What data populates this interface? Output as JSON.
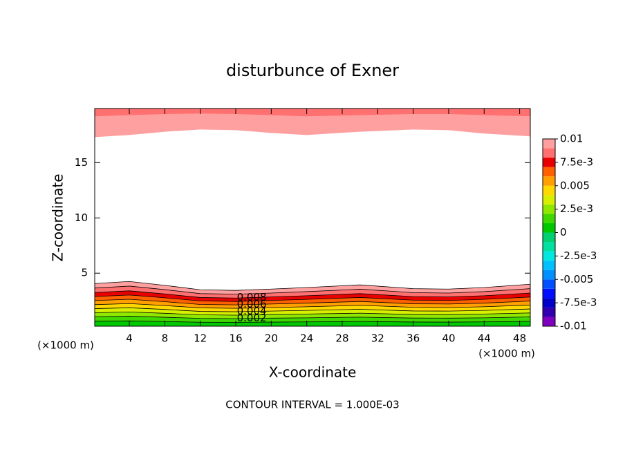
{
  "chart_data": {
    "type": "contour",
    "title": "disturbunce of Exner",
    "xlabel": "X-coordinate",
    "ylabel": "Z-coordinate",
    "xunit_label": "(×1000 m)",
    "yunit_label": "(×1000 m)",
    "annotation": "CONTOUR INTERVAL = 1.000E-03",
    "xlim": [
      0.1,
      49.2
    ],
    "ylim": [
      0.2,
      19.9
    ],
    "xticks": [
      4,
      8,
      12,
      16,
      20,
      24,
      28,
      32,
      36,
      40,
      44,
      48
    ],
    "yticks": [
      5,
      10,
      15
    ],
    "x": [
      0.1,
      4,
      8,
      12,
      16,
      20,
      24,
      30,
      36,
      40,
      44,
      49.2
    ],
    "contour_groups": [
      {
        "fill_from": "bottom",
        "lines": true,
        "contours": [
          {
            "level": 0.01,
            "z": [
              4.06,
              4.25,
              3.9,
              3.5,
              3.44,
              3.56,
              3.7,
              3.94,
              3.6,
              3.56,
              3.7,
              4.0
            ]
          },
          {
            "level": 0.009,
            "z": [
              3.65,
              3.83,
              3.51,
              3.15,
              3.1,
              3.2,
              3.33,
              3.55,
              3.24,
              3.2,
              3.33,
              3.6
            ]
          },
          {
            "level": 0.008,
            "z": [
              3.25,
              3.4,
              3.12,
              2.8,
              2.75,
              2.85,
              2.96,
              3.15,
              2.88,
              2.85,
              2.96,
              3.2
            ]
          },
          {
            "level": 0.007,
            "z": [
              2.88,
              3.02,
              2.77,
              2.49,
              2.44,
              2.53,
              2.63,
              2.8,
              2.56,
              2.53,
              2.63,
              2.84
            ]
          },
          {
            "level": 0.006,
            "z": [
              2.52,
              2.64,
              2.42,
              2.17,
              2.13,
              2.21,
              2.29,
              2.44,
              2.23,
              2.21,
              2.29,
              2.48
            ]
          },
          {
            "level": 0.005,
            "z": [
              2.15,
              2.25,
              2.07,
              1.86,
              1.82,
              1.89,
              1.96,
              2.09,
              1.91,
              1.89,
              1.96,
              2.12
            ]
          },
          {
            "level": 0.004,
            "z": [
              1.79,
              1.87,
              1.72,
              1.54,
              1.51,
              1.57,
              1.63,
              1.73,
              1.58,
              1.57,
              1.63,
              1.76
            ]
          },
          {
            "level": 0.003,
            "z": [
              1.42,
              1.49,
              1.37,
              1.23,
              1.2,
              1.25,
              1.3,
              1.38,
              1.26,
              1.25,
              1.3,
              1.4
            ]
          },
          {
            "level": 0.002,
            "z": [
              1.06,
              1.11,
              1.01,
              0.91,
              0.89,
              0.93,
              0.96,
              1.02,
              0.94,
              0.93,
              0.96,
              1.04
            ]
          },
          {
            "level": 0.001,
            "z": [
              0.65,
              0.68,
              0.62,
              0.56,
              0.55,
              0.57,
              0.59,
              0.63,
              0.58,
              0.57,
              0.59,
              0.64
            ]
          }
        ]
      },
      {
        "fill_from": "top",
        "lines": false,
        "contours": [
          {
            "level": 0.01,
            "z": [
              17.31,
              17.5,
              17.8,
              18.0,
              17.94,
              17.69,
              17.5,
              17.8,
              18.0,
              17.94,
              17.63,
              17.38
            ]
          },
          {
            "level": 0.009,
            "z": [
              19.2,
              19.3,
              19.4,
              19.45,
              19.4,
              19.3,
              19.2,
              19.3,
              19.4,
              19.4,
              19.3,
              19.2
            ]
          }
        ]
      }
    ],
    "contour_labels": [
      0.008,
      0.006,
      0.004,
      0.002
    ],
    "levels": [
      -0.01,
      -0.009,
      -0.008,
      -0.007,
      -0.006,
      -0.005,
      -0.004,
      -0.003,
      -0.002,
      -0.001,
      0,
      0.001,
      0.002,
      0.003,
      0.004,
      0.005,
      0.006,
      0.007,
      0.008,
      0.009,
      0.01
    ],
    "colors": [
      "#8000c0",
      "#3000b0",
      "#0000c8",
      "#0010ff",
      "#0050ff",
      "#0090ff",
      "#00c0ff",
      "#00e8e0",
      "#00e0a0",
      "#00d070",
      "#00c800",
      "#40d800",
      "#90e800",
      "#d8f000",
      "#ffd800",
      "#ffa000",
      "#ff6000",
      "#e80000",
      "#ff7070",
      "#ffa0a0"
    ],
    "colorbar_ticks": [
      -0.01,
      {
        "value": -0.0075,
        "label": "-7.5e-3"
      },
      -0.005,
      {
        "value": -0.0025,
        "label": "-2.5e-3"
      },
      0,
      {
        "value": 0.0025,
        "label": "2.5e-3"
      },
      0.005,
      {
        "value": 0.0075,
        "label": "7.5e-3"
      },
      0.01
    ]
  }
}
